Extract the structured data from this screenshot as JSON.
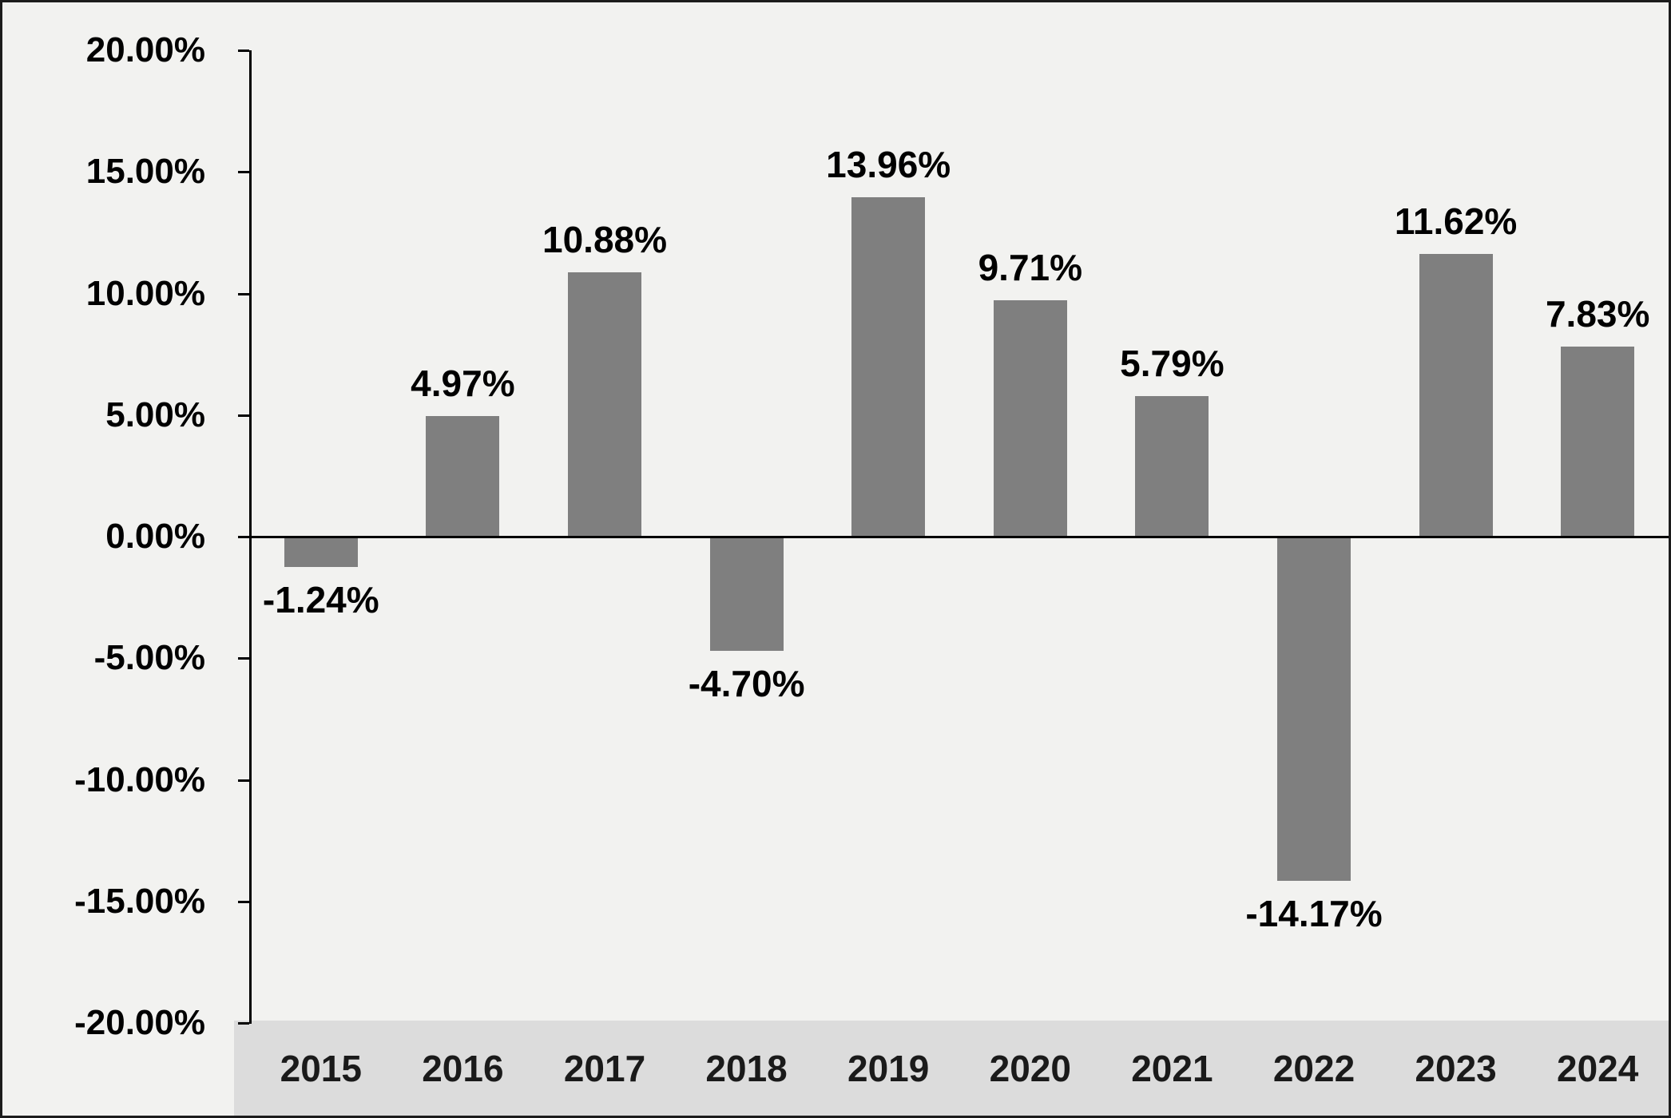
{
  "chart_data": {
    "type": "bar",
    "title": "",
    "xlabel": "",
    "ylabel": "",
    "categories": [
      "2015",
      "2016",
      "2017",
      "2018",
      "2019",
      "2020",
      "2021",
      "2022",
      "2023",
      "2024"
    ],
    "values": [
      -1.24,
      4.97,
      10.88,
      -4.7,
      13.96,
      9.71,
      5.79,
      -14.17,
      11.62,
      7.83
    ],
    "value_labels": [
      "-1.24%",
      "4.97%",
      "10.88%",
      "-4.70%",
      "13.96%",
      "9.71%",
      "5.79%",
      "-14.17%",
      "11.62%",
      "7.83%"
    ],
    "ylim": [
      -20,
      20
    ],
    "y_tick_values": [
      20,
      15,
      10,
      5,
      0,
      -5,
      -10,
      -15,
      -20
    ],
    "y_tick_labels": [
      "20.00%",
      "15.00%",
      "10.00%",
      "5.00%",
      "0.00%",
      "-5.00%",
      "-10.00%",
      "-15.00%",
      "-20.00%"
    ],
    "grid": false,
    "legend": "none",
    "bar_color": "#7f7f7f",
    "background_color": "#f2f2f0",
    "x_band_color": "#dcdcdc",
    "axis_color": "#000000",
    "label_color": "#000000"
  }
}
